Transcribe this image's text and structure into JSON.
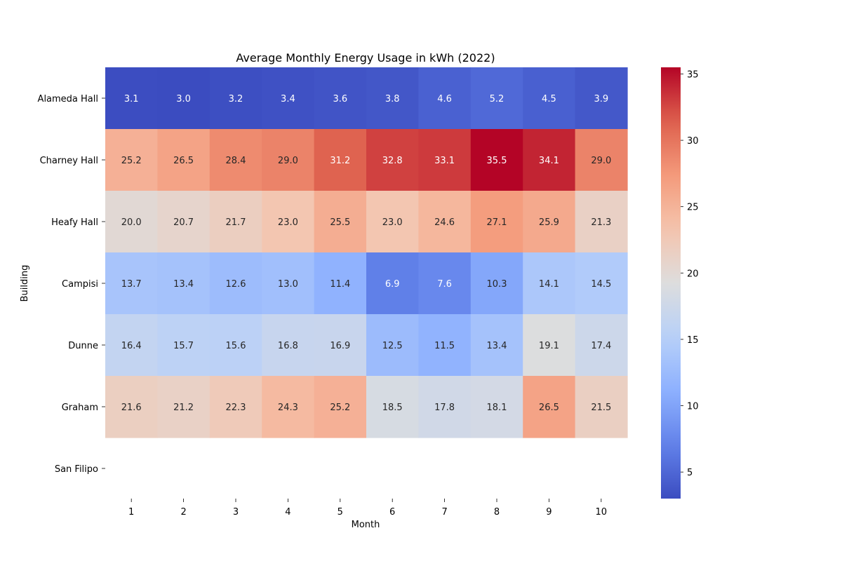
{
  "chart_data": {
    "type": "heatmap",
    "title": "Average Monthly Energy Usage in kWh (2022)",
    "xlabel": "Month",
    "ylabel": "Building",
    "x_categories": [
      "1",
      "2",
      "3",
      "4",
      "5",
      "6",
      "7",
      "8",
      "9",
      "10"
    ],
    "y_categories": [
      "Alameda Hall",
      "Charney Hall",
      "Heafy Hall",
      "Campisi",
      "Dunne",
      "Graham",
      "San Filipo"
    ],
    "values": [
      [
        3.1,
        3.0,
        3.2,
        3.4,
        3.6,
        3.8,
        4.6,
        5.2,
        4.5,
        3.9
      ],
      [
        25.2,
        26.5,
        28.4,
        29.0,
        31.2,
        32.8,
        33.1,
        35.5,
        34.1,
        29.0
      ],
      [
        20.0,
        20.7,
        21.7,
        23.0,
        25.5,
        23.0,
        24.6,
        27.1,
        25.9,
        21.3
      ],
      [
        13.7,
        13.4,
        12.6,
        13.0,
        11.4,
        6.9,
        7.6,
        10.3,
        14.1,
        14.5
      ],
      [
        16.4,
        15.7,
        15.6,
        16.8,
        16.9,
        12.5,
        11.5,
        13.4,
        19.1,
        17.4
      ],
      [
        21.6,
        21.2,
        22.3,
        24.3,
        25.2,
        18.5,
        17.8,
        18.1,
        26.5,
        21.5
      ],
      [
        null,
        null,
        null,
        null,
        null,
        null,
        null,
        null,
        null,
        null
      ]
    ],
    "value_format": "0.0",
    "colormap": "coolwarm",
    "color_range": [
      3.0,
      35.5
    ],
    "colorbar_ticks": [
      "5",
      "10",
      "15",
      "20",
      "25",
      "30",
      "35"
    ],
    "colorbar_tick_values": [
      5,
      10,
      15,
      20,
      25,
      30,
      35
    ],
    "grid": false
  }
}
